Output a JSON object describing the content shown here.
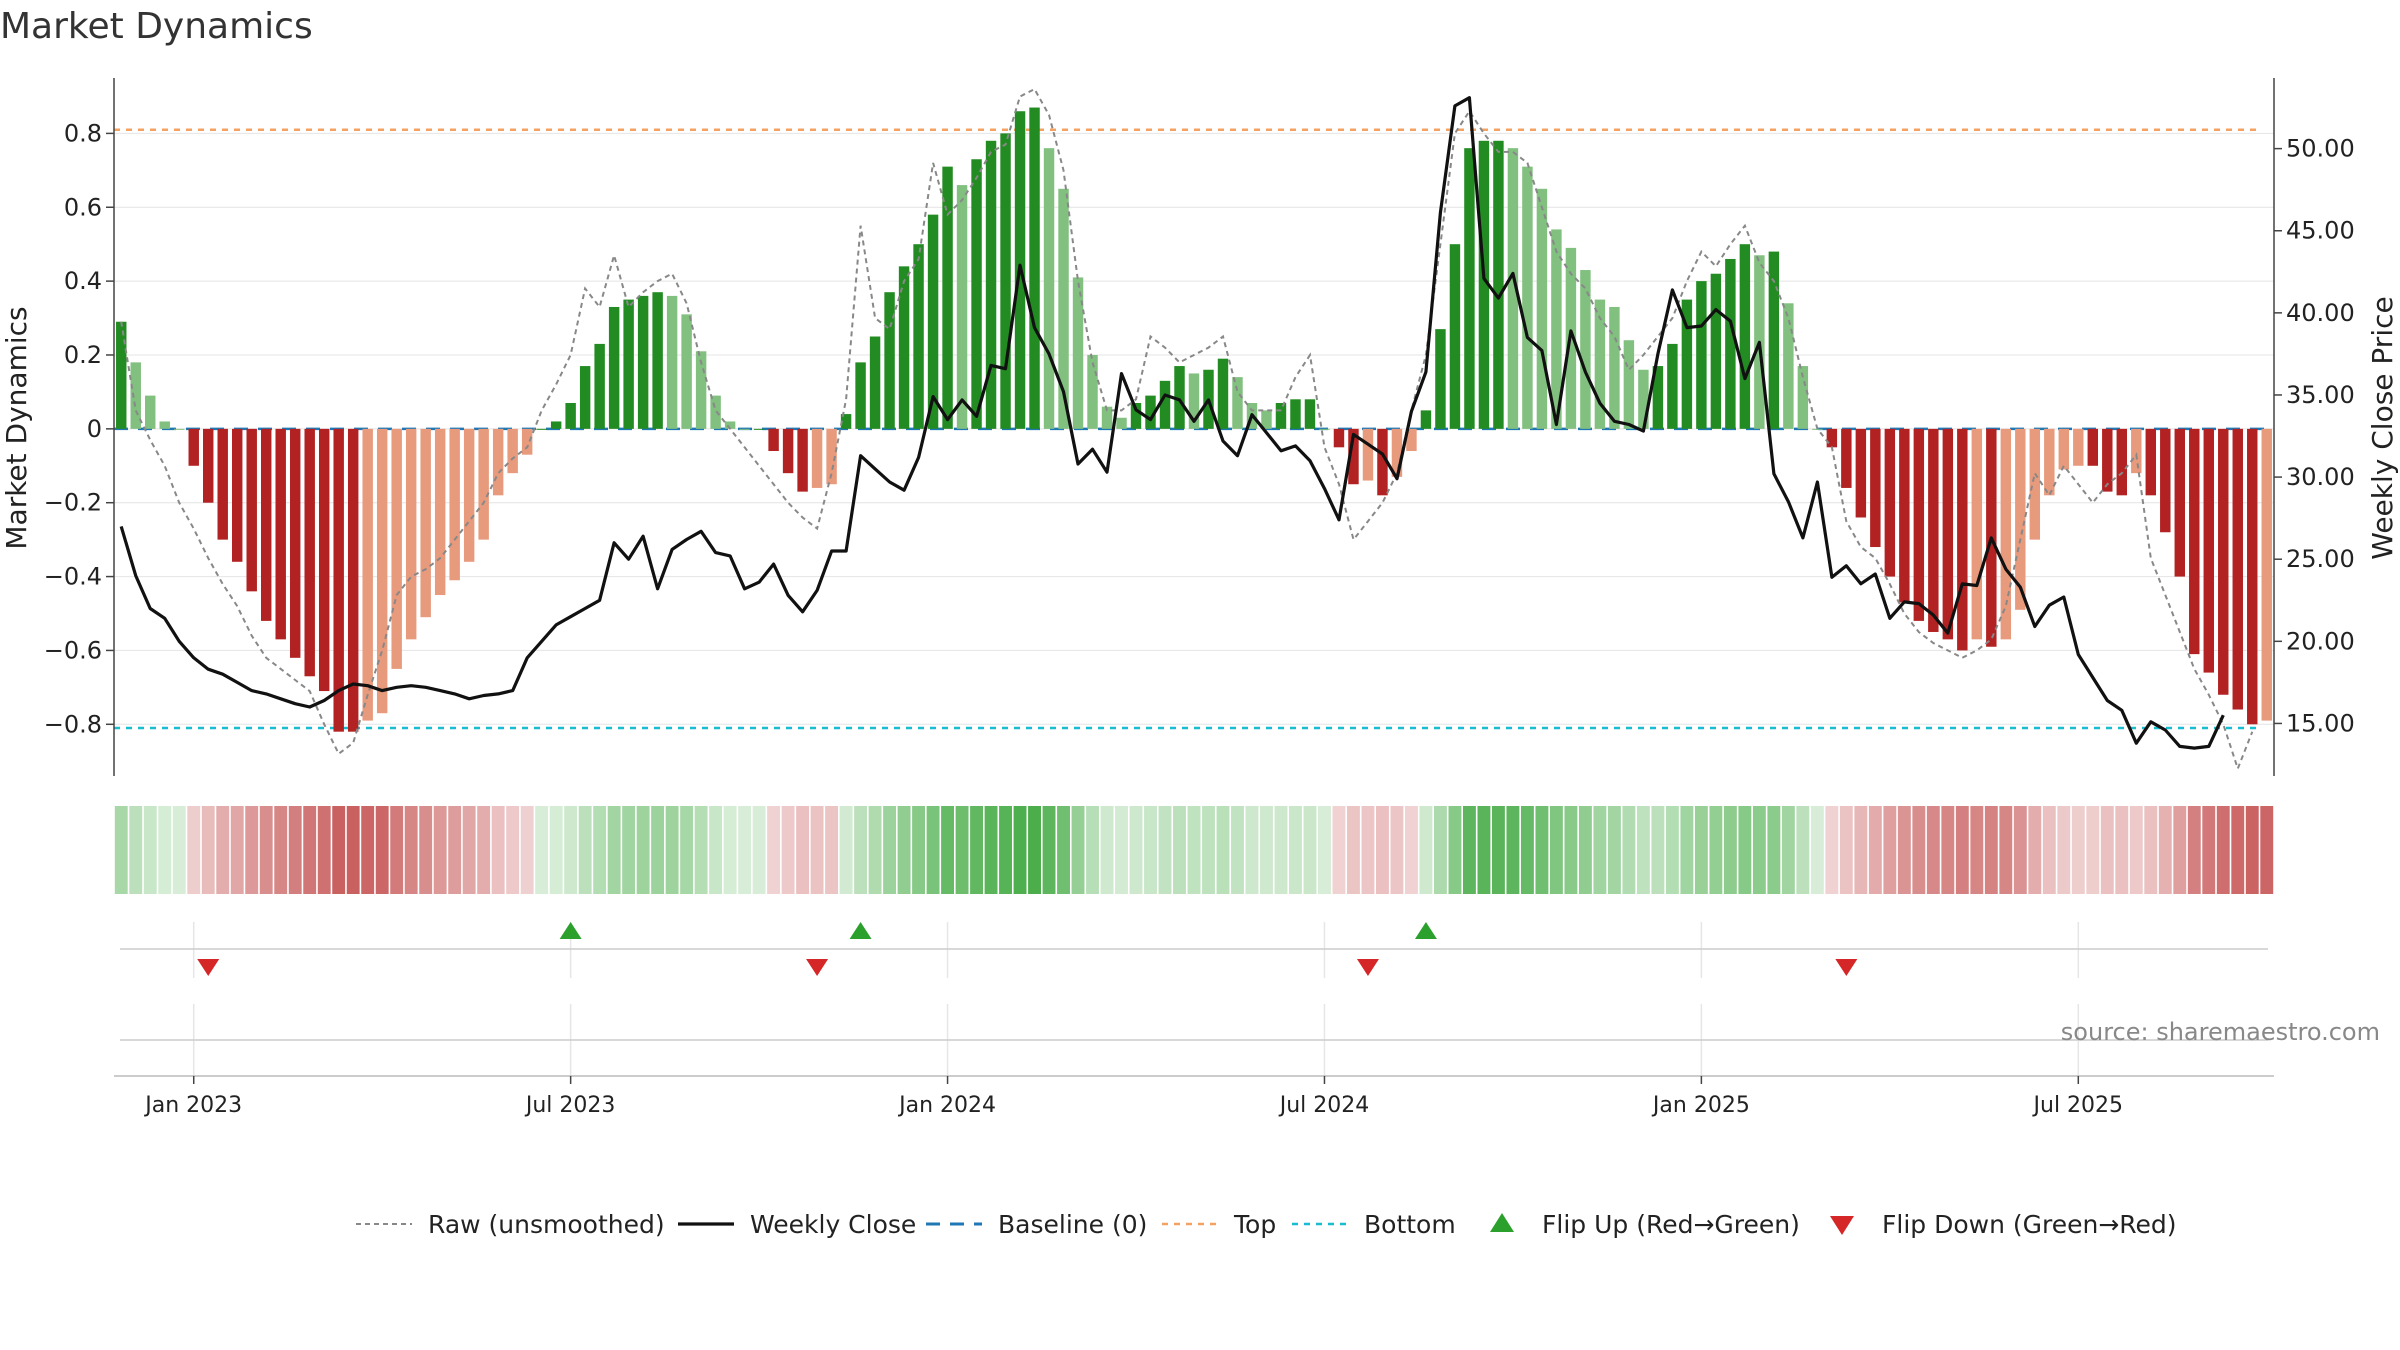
{
  "chart_data": {
    "type": "bar",
    "title": "Market Dynamics",
    "ylabel_left": "Market Dynamics",
    "ylabel_right": "Weekly Close Price",
    "left_ylim": [
      -0.94,
      0.95
    ],
    "right_ylim": [
      11.8,
      54.3
    ],
    "left_ticks": [
      {
        "v": 0.8,
        "label": "0.8"
      },
      {
        "v": 0.6,
        "label": "0.6"
      },
      {
        "v": 0.4,
        "label": "0.4"
      },
      {
        "v": 0.2,
        "label": "0.2"
      },
      {
        "v": 0,
        "label": "0"
      },
      {
        "v": -0.2,
        "label": "−0.2"
      },
      {
        "v": -0.4,
        "label": "−0.4"
      },
      {
        "v": -0.6,
        "label": "−0.6"
      },
      {
        "v": -0.8,
        "label": "−0.8"
      }
    ],
    "right_ticks": [
      {
        "v": 50,
        "label": "50.00"
      },
      {
        "v": 45,
        "label": "45.00"
      },
      {
        "v": 40,
        "label": "40.00"
      },
      {
        "v": 35,
        "label": "35.00"
      },
      {
        "v": 30,
        "label": "30.00"
      },
      {
        "v": 25,
        "label": "25.00"
      },
      {
        "v": 20,
        "label": "20.00"
      },
      {
        "v": 15,
        "label": "15.00"
      }
    ],
    "x_ticks": [
      {
        "week": 5,
        "label": "Jan 2023"
      },
      {
        "week": 31,
        "label": "Jul 2023"
      },
      {
        "week": 57,
        "label": "Jan 2024"
      },
      {
        "week": 83,
        "label": "Jul 2024"
      },
      {
        "week": 109,
        "label": "Jan 2025"
      },
      {
        "week": 135,
        "label": "Jul 2025"
      }
    ],
    "top_line": 0.81,
    "bottom_line": -0.81,
    "baseline": 0,
    "colors": {
      "strong_up": "#228b22",
      "weak_up": "#81c07f",
      "strong_down": "#b22222",
      "weak_down": "#e89a7c",
      "weekly_close": "#111111",
      "raw": "#888888",
      "baseline": "#1f77b4",
      "top": "#f4a261",
      "bottom": "#17becf",
      "flip_up": "#2ca02c",
      "flip_down": "#d62728"
    },
    "smoothed": [
      0.29,
      0.18,
      0.09,
      0.02,
      0,
      -0.1,
      -0.2,
      -0.3,
      -0.36,
      -0.44,
      -0.52,
      -0.57,
      -0.62,
      -0.67,
      -0.71,
      -0.82,
      -0.82,
      -0.79,
      -0.77,
      -0.65,
      -0.57,
      -0.51,
      -0.45,
      -0.41,
      -0.36,
      -0.3,
      -0.18,
      -0.12,
      -0.07,
      0,
      0.02,
      0.07,
      0.17,
      0.23,
      0.33,
      0.35,
      0.36,
      0.37,
      0.36,
      0.31,
      0.21,
      0.09,
      0.02,
      0,
      0,
      -0.06,
      -0.12,
      -0.17,
      -0.16,
      -0.15,
      0.04,
      0.18,
      0.25,
      0.37,
      0.44,
      0.5,
      0.58,
      0.71,
      0.66,
      0.73,
      0.78,
      0.8,
      0.86,
      0.87,
      0.76,
      0.65,
      0.41,
      0.2,
      0.06,
      0.03,
      0.07,
      0.09,
      0.13,
      0.17,
      0.15,
      0.16,
      0.19,
      0.14,
      0.07,
      0.05,
      0.07,
      0.08,
      0.08,
      0,
      -0.05,
      -0.15,
      -0.14,
      -0.18,
      -0.13,
      -0.06,
      0.05,
      0.27,
      0.5,
      0.76,
      0.78,
      0.78,
      0.76,
      0.71,
      0.65,
      0.54,
      0.49,
      0.43,
      0.35,
      0.33,
      0.24,
      0.16,
      0.17,
      0.23,
      0.35,
      0.4,
      0.42,
      0.46,
      0.5,
      0.47,
      0.48,
      0.34,
      0.17,
      0,
      -0.05,
      -0.16,
      -0.24,
      -0.32,
      -0.4,
      -0.47,
      -0.52,
      -0.55,
      -0.57,
      -0.6,
      -0.57,
      -0.59,
      -0.57,
      -0.49,
      -0.3,
      -0.18,
      -0.11,
      -0.1,
      -0.1,
      -0.17,
      -0.18,
      -0.12,
      -0.18,
      -0.28,
      -0.4,
      -0.61,
      -0.66,
      -0.72,
      -0.76,
      -0.8,
      -0.79
    ],
    "raw": [
      0.29,
      0.05,
      -0.03,
      -0.1,
      -0.2,
      -0.27,
      -0.35,
      -0.42,
      -0.48,
      -0.56,
      -0.62,
      -0.65,
      -0.68,
      -0.71,
      -0.8,
      -0.88,
      -0.85,
      -0.72,
      -0.6,
      -0.45,
      -0.4,
      -0.38,
      -0.35,
      -0.3,
      -0.25,
      -0.2,
      -0.12,
      -0.08,
      -0.05,
      0.05,
      0.12,
      0.2,
      0.38,
      0.33,
      0.47,
      0.33,
      0.37,
      0.4,
      0.42,
      0.34,
      0.18,
      0.05,
      0,
      -0.05,
      -0.1,
      -0.15,
      -0.2,
      -0.24,
      -0.27,
      -0.12,
      0.08,
      0.55,
      0.3,
      0.27,
      0.4,
      0.46,
      0.72,
      0.58,
      0.62,
      0.68,
      0.75,
      0.77,
      0.9,
      0.92,
      0.85,
      0.7,
      0.4,
      0.18,
      0.05,
      0.05,
      0.08,
      0.25,
      0.22,
      0.18,
      0.2,
      0.22,
      0.25,
      0.1,
      0.05,
      0.05,
      0.05,
      0.14,
      0.2,
      -0.05,
      -0.15,
      -0.3,
      -0.25,
      -0.2,
      -0.12,
      0.05,
      0.2,
      0.5,
      0.8,
      0.86,
      0.8,
      0.75,
      0.75,
      0.72,
      0.6,
      0.48,
      0.42,
      0.38,
      0.3,
      0.25,
      0.16,
      0.2,
      0.25,
      0.3,
      0.4,
      0.48,
      0.44,
      0.5,
      0.55,
      0.45,
      0.4,
      0.3,
      0.14,
      0,
      -0.05,
      -0.25,
      -0.32,
      -0.35,
      -0.42,
      -0.5,
      -0.55,
      -0.58,
      -0.6,
      -0.62,
      -0.6,
      -0.57,
      -0.48,
      -0.3,
      -0.12,
      -0.18,
      -0.1,
      -0.15,
      -0.2,
      -0.15,
      -0.12,
      -0.07,
      -0.35,
      -0.45,
      -0.55,
      -0.65,
      -0.72,
      -0.8,
      -0.92,
      -0.82
    ],
    "weekly_close": [
      27,
      24,
      22,
      21.4,
      20,
      19,
      18.3,
      18,
      17.5,
      17,
      16.8,
      16.5,
      16.2,
      16,
      16.4,
      17,
      17.4,
      17.3,
      17,
      17.2,
      17.3,
      17.2,
      17,
      16.8,
      16.5,
      16.7,
      16.8,
      17,
      19,
      20,
      21,
      21.5,
      22,
      22.5,
      26,
      25,
      26.4,
      23.2,
      25.6,
      26.2,
      26.7,
      25.4,
      25.2,
      23.2,
      23.6,
      24.7,
      22.8,
      21.8,
      23.1,
      25.5,
      25.5,
      31.3,
      30.5,
      29.7,
      29.2,
      31.2,
      34.9,
      33.5,
      34.7,
      33.7,
      36.8,
      36.6,
      42.9,
      39.1,
      37.5,
      35.2,
      30.8,
      31.7,
      30.3,
      36.3,
      34.1,
      33.5,
      35,
      34.7,
      33.4,
      34.7,
      32.2,
      31.3,
      33.8,
      32.7,
      31.6,
      31.9,
      31,
      29.3,
      27.4,
      32.6,
      32,
      31.4,
      29.9,
      34,
      36.4,
      46.1,
      52.6,
      53.1,
      42.1,
      40.9,
      42.4,
      38.5,
      37.7,
      33.2,
      38.9,
      36.4,
      34.5,
      33.4,
      33.2,
      32.8,
      37.5,
      41.4,
      39.1,
      39.2,
      40.2,
      39.5,
      36,
      38.2,
      30.2,
      28.5,
      26.3,
      29.7,
      23.9,
      24.6,
      23.5,
      24.1,
      21.4,
      22.4,
      22.3,
      21.6,
      20.5,
      23.5,
      23.4,
      26.3,
      24.4,
      23.3,
      20.9,
      22.2,
      22.7,
      19.2,
      17.8,
      16.4,
      15.8,
      13.8,
      15.1,
      14.6,
      13.6,
      13.5,
      13.6,
      15.5
    ],
    "flip_up_weeks": [
      31,
      51,
      90
    ],
    "flip_down_weeks": [
      6,
      48,
      86,
      119
    ],
    "legend": [
      {
        "key": "raw",
        "label": "Raw (unsmoothed)"
      },
      {
        "key": "close",
        "label": "Weekly Close"
      },
      {
        "key": "baseline",
        "label": "Baseline (0)"
      },
      {
        "key": "top",
        "label": "Top"
      },
      {
        "key": "bottom",
        "label": "Bottom"
      },
      {
        "key": "flip_up",
        "label": "Flip Up (Red→Green)"
      },
      {
        "key": "flip_down",
        "label": "Flip Down (Green→Red)"
      }
    ]
  },
  "source_text": "source: sharemaestro.com"
}
